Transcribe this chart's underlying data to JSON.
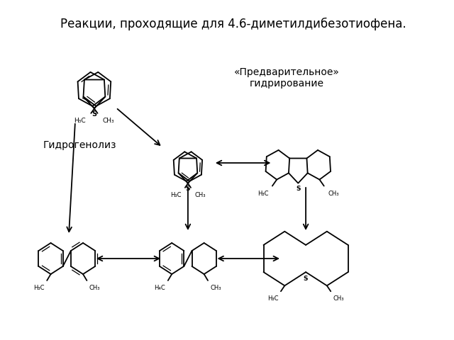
{
  "title": "Реакции, проходящие для 4.6-диметилдибезотиофена.",
  "label_hydrogenolysis": "Гидрогенолиз",
  "label_prehydro": "«Предварительное»\nгидрирование",
  "bg_color": "#ffffff",
  "line_color": "#000000",
  "title_fontsize": 12,
  "label_fontsize": 10,
  "small_fontsize": 7
}
